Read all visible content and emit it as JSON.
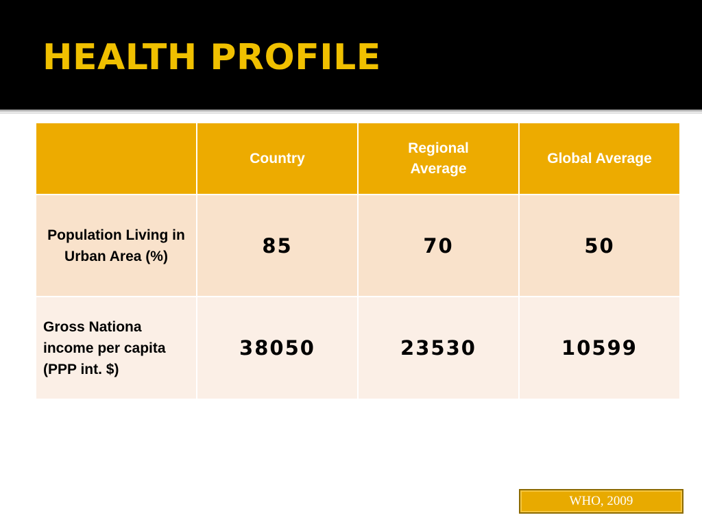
{
  "slide": {
    "title": "HEALTH PROFILE",
    "source": "WHO, 2009"
  },
  "colors": {
    "title_bar": "#000000",
    "title_text": "#f0c000",
    "header_fill": "#edab00",
    "row1_fill": "#f9e2cb",
    "row2_fill": "#fbefe6",
    "source_fill": "#e8aa00"
  },
  "table": {
    "columns": [
      "",
      "Country",
      "Regional Average",
      "Global Average"
    ],
    "rows": [
      {
        "label": "Population Living in Urban Area (%)",
        "values": [
          "85",
          "70",
          "50"
        ]
      },
      {
        "label": "Gross Nationa income per capita (PPP int. $)",
        "values": [
          "38050",
          "23530",
          "10599"
        ]
      }
    ]
  }
}
